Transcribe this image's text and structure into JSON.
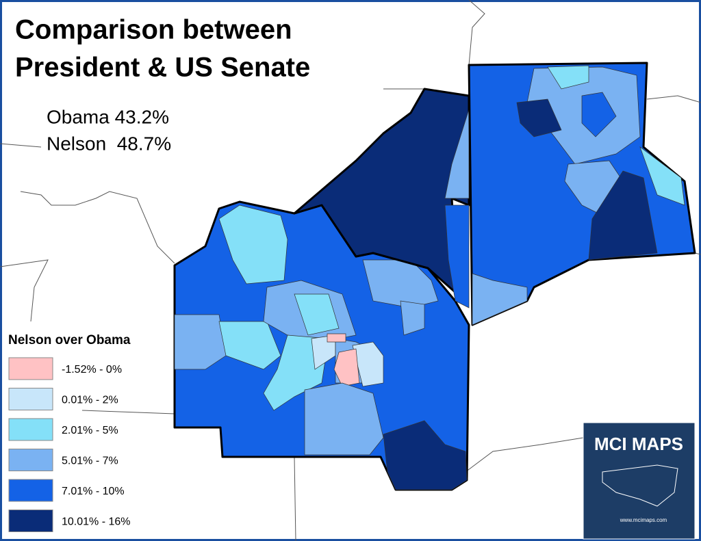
{
  "title_lines": [
    "Comparison between",
    "President & US Senate"
  ],
  "stats": [
    "Obama 43.2%",
    "Nelson  48.7%"
  ],
  "legend": {
    "title": "Nelson over Obama",
    "items": [
      {
        "label": "-1.52% - 0%",
        "color": "#ffc2c4"
      },
      {
        "label": "0.01% - 2%",
        "color": "#c8e6fa"
      },
      {
        "label": "2.01% - 5%",
        "color": "#84e0f8"
      },
      {
        "label": "5.01% - 7%",
        "color": "#7ab2f2"
      },
      {
        "label": "7.01% - 10%",
        "color": "#1462e6"
      },
      {
        "label": "10.01% - 16%",
        "color": "#0a2c78"
      }
    ]
  },
  "logo": {
    "title": "MCI MAPS",
    "url": "www.mcimaps.com"
  }
}
